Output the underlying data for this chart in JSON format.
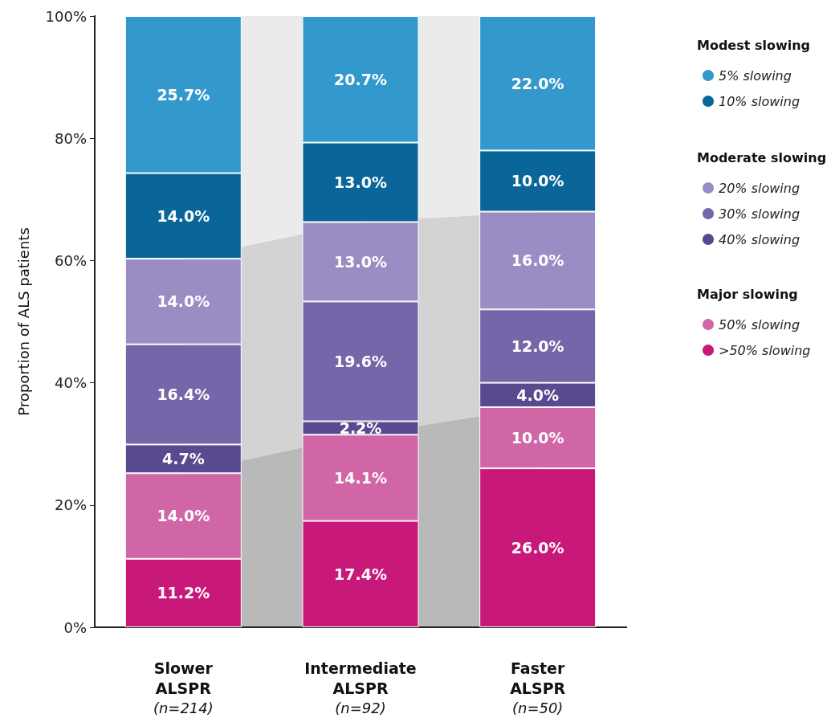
{
  "chart_data": [
    {
      "type": "area",
      "stacked": true,
      "categories": [
        null,
        null,
        null
      ],
      "ylim": [
        0,
        100
      ],
      "series": [
        {
          "color": "#b9b9b9",
          "values": [
            25.2,
            31.5,
            36.0
          ]
        },
        {
          "color": "#d3d3d3",
          "values": [
            35.1,
            34.8,
            32.0
          ]
        },
        {
          "color": "#ebebeb",
          "values": [
            39.7,
            33.7,
            32.0
          ]
        }
      ]
    },
    {
      "type": "bar",
      "stacked": true,
      "categories": [
        "Slower\nALSPR\n(n=214)",
        "Intermediate\nALSPR\n(n=92)",
        "Faster\nALSPR\n(n=50)"
      ],
      "ylabel": "Proportion of ALS patients",
      "ylim": [
        0,
        100
      ],
      "yticks": [
        {
          "value": 0,
          "label": "0%"
        },
        {
          "value": 20,
          "label": "20%"
        },
        {
          "value": 40,
          "label": "40%"
        },
        {
          "value": 60,
          "label": "60%"
        },
        {
          "value": 80,
          "label": "80%"
        },
        {
          "value": 100,
          "label": "100%"
        }
      ],
      "annotations": [
        "Modest slowing",
        "Moderate slowing",
        "Major slowing"
      ],
      "legend": "right",
      "series": [
        {
          "name": ">50% slowing",
          "color": "#c8197a",
          "values": [
            11.2,
            17.4,
            26.0
          ],
          "value_labels": [
            "11.2%",
            "17.4%",
            "26.0%"
          ]
        },
        {
          "name": "50% slowing",
          "color": "#d066a6",
          "values": [
            14.0,
            14.1,
            10.0
          ],
          "value_labels": [
            "14.0%",
            "14.1%",
            "10.0%"
          ]
        },
        {
          "name": "40% slowing",
          "color": "#594a8f",
          "values": [
            4.7,
            2.2,
            4.0
          ],
          "value_labels": [
            "4.7%",
            "2.2%",
            "4.0%"
          ]
        },
        {
          "name": "30% slowing",
          "color": "#7665a8",
          "values": [
            16.4,
            19.6,
            12.0
          ],
          "value_labels": [
            "16.4%",
            "19.6%",
            "12.0%"
          ]
        },
        {
          "name": "20% slowing",
          "color": "#9b8cc4",
          "values": [
            14.0,
            13.0,
            16.0
          ],
          "value_labels": [
            "14.0%",
            "13.0%",
            "16.0%"
          ]
        },
        {
          "name": "10% slowing",
          "color": "#0a6699",
          "values": [
            14.0,
            13.0,
            10.0
          ],
          "value_labels": [
            "14.0%",
            "13.0%",
            "10.0%"
          ]
        },
        {
          "name": "5% slowing",
          "color": "#3399cc",
          "values": [
            25.7,
            20.7,
            22.0
          ],
          "value_labels": [
            "25.7%",
            "20.7%",
            "22.0%"
          ]
        }
      ]
    }
  ]
}
